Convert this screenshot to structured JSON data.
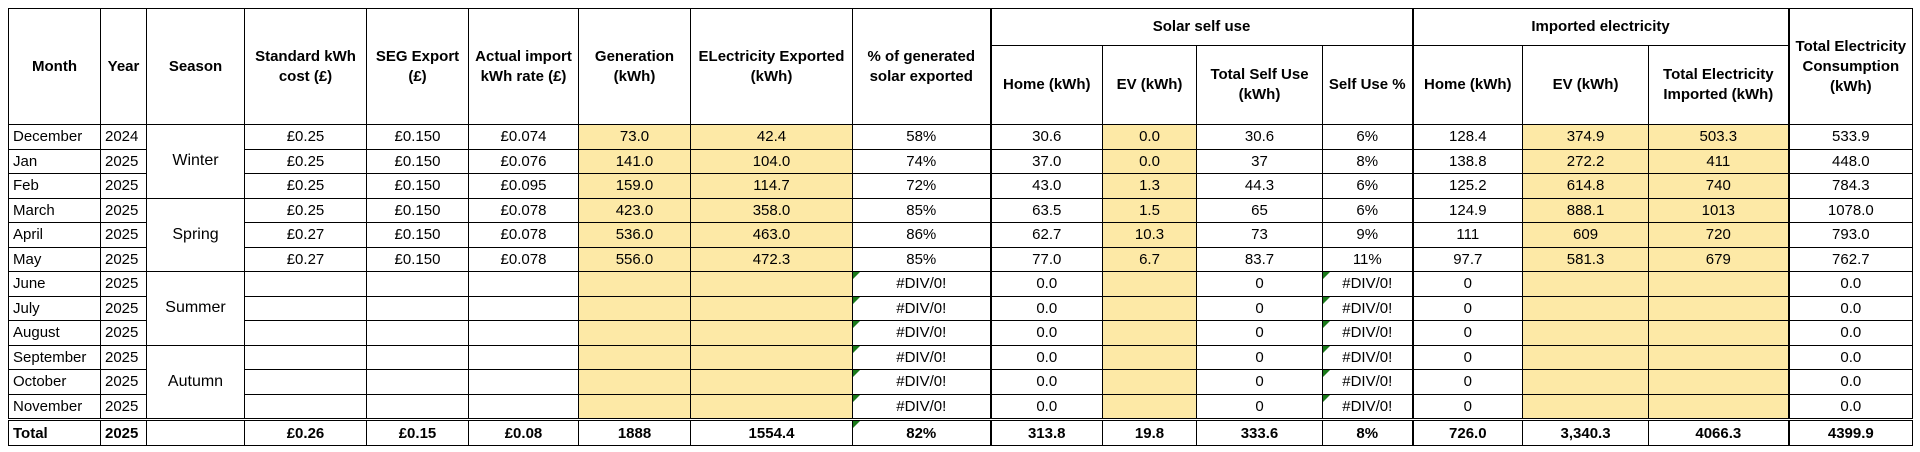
{
  "headers": {
    "month": "Month",
    "year": "Year",
    "season": "Season",
    "std_cost": "Standard kWh cost (£)",
    "seg_export": "SEG Export (£)",
    "actual_import": "Actual import kWh rate (£)",
    "generation": "Generation (kWh)",
    "exported": "ELectricity Exported (kWh)",
    "pct_exported": "% of generated solar exported",
    "solar_group": "Solar self use",
    "home": "Home (kWh)",
    "ev": "EV (kWh)",
    "total_self_use": "Total Self Use (kWh)",
    "self_use_pct": "Self Use %",
    "imported_group": "Imported electricity",
    "imp_home": "Home (kWh)",
    "imp_ev": "EV (kWh)",
    "total_imported": "Total Electricity Imported (kWh)",
    "total_consumption": "Total Electricity Consumption (kWh)"
  },
  "seasons": [
    "Winter",
    "Spring",
    "Summer",
    "Autumn"
  ],
  "rows": [
    {
      "month": "December",
      "year": "2024",
      "std": "£0.25",
      "seg": "£0.150",
      "act": "£0.074",
      "gen": "73.0",
      "exp": "42.4",
      "pct": "58%",
      "home": "30.6",
      "ev": "0.0",
      "tsu": "30.6",
      "sup": "6%",
      "ihome": "128.4",
      "iev": "374.9",
      "timp": "503.3",
      "tcons": "533.9"
    },
    {
      "month": "Jan",
      "year": "2025",
      "std": "£0.25",
      "seg": "£0.150",
      "act": "£0.076",
      "gen": "141.0",
      "exp": "104.0",
      "pct": "74%",
      "home": "37.0",
      "ev": "0.0",
      "tsu": "37",
      "sup": "8%",
      "ihome": "138.8",
      "iev": "272.2",
      "timp": "411",
      "tcons": "448.0"
    },
    {
      "month": "Feb",
      "year": "2025",
      "std": "£0.25",
      "seg": "£0.150",
      "act": "£0.095",
      "gen": "159.0",
      "exp": "114.7",
      "pct": "72%",
      "home": "43.0",
      "ev": "1.3",
      "tsu": "44.3",
      "sup": "6%",
      "ihome": "125.2",
      "iev": "614.8",
      "timp": "740",
      "tcons": "784.3"
    },
    {
      "month": "March",
      "year": "2025",
      "std": "£0.25",
      "seg": "£0.150",
      "act": "£0.078",
      "gen": "423.0",
      "exp": "358.0",
      "pct": "85%",
      "home": "63.5",
      "ev": "1.5",
      "tsu": "65",
      "sup": "6%",
      "ihome": "124.9",
      "iev": "888.1",
      "timp": "1013",
      "tcons": "1078.0"
    },
    {
      "month": "April",
      "year": "2025",
      "std": "£0.27",
      "seg": "£0.150",
      "act": "£0.078",
      "gen": "536.0",
      "exp": "463.0",
      "pct": "86%",
      "home": "62.7",
      "ev": "10.3",
      "tsu": "73",
      "sup": "9%",
      "ihome": "111",
      "iev": "609",
      "timp": "720",
      "tcons": "793.0"
    },
    {
      "month": "May",
      "year": "2025",
      "std": "£0.27",
      "seg": "£0.150",
      "act": "£0.078",
      "gen": "556.0",
      "exp": "472.3",
      "pct": "85%",
      "home": "77.0",
      "ev": "6.7",
      "tsu": "83.7",
      "sup": "11%",
      "ihome": "97.7",
      "iev": "581.3",
      "timp": "679",
      "tcons": "762.7"
    },
    {
      "month": "June",
      "year": "2025",
      "std": "",
      "seg": "",
      "act": "",
      "gen": "",
      "exp": "",
      "pct": "#DIV/0!",
      "home": "0.0",
      "ev": "",
      "tsu": "0",
      "sup": "#DIV/0!",
      "ihome": "0",
      "iev": "",
      "timp": "",
      "tcons": "0.0"
    },
    {
      "month": "July",
      "year": "2025",
      "std": "",
      "seg": "",
      "act": "",
      "gen": "",
      "exp": "",
      "pct": "#DIV/0!",
      "home": "0.0",
      "ev": "",
      "tsu": "0",
      "sup": "#DIV/0!",
      "ihome": "0",
      "iev": "",
      "timp": "",
      "tcons": "0.0"
    },
    {
      "month": "August",
      "year": "2025",
      "std": "",
      "seg": "",
      "act": "",
      "gen": "",
      "exp": "",
      "pct": "#DIV/0!",
      "home": "0.0",
      "ev": "",
      "tsu": "0",
      "sup": "#DIV/0!",
      "ihome": "0",
      "iev": "",
      "timp": "",
      "tcons": "0.0"
    },
    {
      "month": "September",
      "year": "2025",
      "std": "",
      "seg": "",
      "act": "",
      "gen": "",
      "exp": "",
      "pct": "#DIV/0!",
      "home": "0.0",
      "ev": "",
      "tsu": "0",
      "sup": "#DIV/0!",
      "ihome": "0",
      "iev": "",
      "timp": "",
      "tcons": "0.0"
    },
    {
      "month": "October",
      "year": "2025",
      "std": "",
      "seg": "",
      "act": "",
      "gen": "",
      "exp": "",
      "pct": "#DIV/0!",
      "home": "0.0",
      "ev": "",
      "tsu": "0",
      "sup": "#DIV/0!",
      "ihome": "0",
      "iev": "",
      "timp": "",
      "tcons": "0.0"
    },
    {
      "month": "November",
      "year": "2025",
      "std": "",
      "seg": "",
      "act": "",
      "gen": "",
      "exp": "",
      "pct": "#DIV/0!",
      "home": "0.0",
      "ev": "",
      "tsu": "0",
      "sup": "#DIV/0!",
      "ihome": "0",
      "iev": "",
      "timp": "",
      "tcons": "0.0"
    }
  ],
  "total": {
    "month": "Total",
    "year": "2025",
    "std": "£0.26",
    "seg": "£0.15",
    "act": "£0.08",
    "gen": "1888",
    "exp": "1554.4",
    "pct": "82%",
    "home": "313.8",
    "ev": "19.8",
    "tsu": "333.6",
    "sup": "8%",
    "ihome": "726.0",
    "iev": "3,340.3",
    "timp": "4066.3",
    "tcons": "4399.9"
  },
  "colors": {
    "highlight": "#fde9a6",
    "error_flag": "#1a7a1a"
  }
}
